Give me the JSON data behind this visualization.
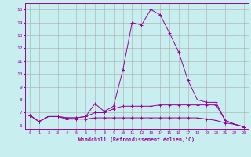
{
  "title": "",
  "xlabel": "Windchill (Refroidissement éolien,°C)",
  "x": [
    0,
    1,
    2,
    3,
    4,
    5,
    6,
    7,
    8,
    9,
    10,
    11,
    12,
    13,
    14,
    15,
    16,
    17,
    18,
    19,
    20,
    21,
    22,
    23
  ],
  "line1": [
    6.8,
    6.3,
    6.7,
    6.7,
    6.6,
    6.6,
    6.7,
    7.7,
    7.1,
    7.5,
    10.3,
    14.0,
    13.8,
    15.0,
    14.6,
    13.2,
    11.7,
    9.5,
    8.0,
    7.8,
    7.8,
    6.4,
    6.1,
    5.9
  ],
  "line2": [
    6.8,
    6.3,
    6.7,
    6.7,
    6.6,
    6.6,
    6.7,
    7.0,
    7.0,
    7.3,
    7.5,
    7.5,
    7.5,
    7.5,
    7.6,
    7.6,
    7.6,
    7.6,
    7.6,
    7.6,
    7.6,
    6.4,
    6.1,
    5.9
  ],
  "line3": [
    6.8,
    6.3,
    6.7,
    6.7,
    6.5,
    6.5,
    6.5,
    6.6,
    6.6,
    6.6,
    6.6,
    6.6,
    6.6,
    6.6,
    6.6,
    6.6,
    6.6,
    6.6,
    6.6,
    6.5,
    6.4,
    6.2,
    6.1,
    5.9
  ],
  "line_color": "#990099",
  "bg_color": "#c8eef0",
  "grid_color": "#aaaaaa",
  "ylim": [
    5.75,
    15.5
  ],
  "xlim": [
    -0.5,
    23.5
  ],
  "yticks": [
    6,
    7,
    8,
    9,
    10,
    11,
    12,
    13,
    14,
    15
  ],
  "xticks": [
    0,
    1,
    2,
    3,
    4,
    5,
    6,
    7,
    8,
    9,
    10,
    11,
    12,
    13,
    14,
    15,
    16,
    17,
    18,
    19,
    20,
    21,
    22,
    23
  ]
}
